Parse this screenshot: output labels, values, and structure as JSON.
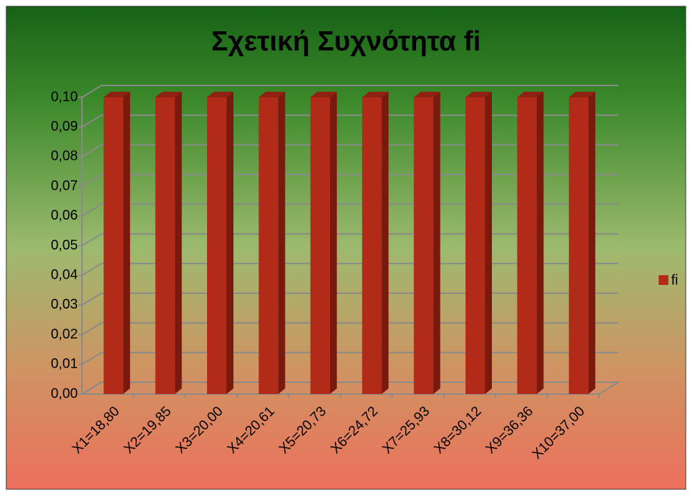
{
  "chart_data": {
    "type": "bar",
    "title": "Σχετική Συχνότητα fi",
    "categories": [
      "X1=18,80",
      "X2=19,85",
      "X3=20,00",
      "X4=20,61",
      "X5=20,73",
      "X6=24,72",
      "X7=25,93",
      "X8=30,12",
      "X9=36,36",
      "X10=37,00"
    ],
    "series": [
      {
        "name": "fi",
        "color": "#b22a18",
        "values": [
          0.1,
          0.1,
          0.1,
          0.1,
          0.1,
          0.1,
          0.1,
          0.1,
          0.1,
          0.1
        ]
      }
    ],
    "ylim": [
      0,
      0.1
    ],
    "yticks": [
      {
        "value": 0,
        "label": "0,00"
      },
      {
        "value": 0.01,
        "label": "0,01"
      },
      {
        "value": 0.02,
        "label": "0,02"
      },
      {
        "value": 0.03,
        "label": "0,03"
      },
      {
        "value": 0.04,
        "label": "0,04"
      },
      {
        "value": 0.05,
        "label": "0,05"
      },
      {
        "value": 0.06,
        "label": "0,06"
      },
      {
        "value": 0.07,
        "label": "0,07"
      },
      {
        "value": 0.08,
        "label": "0,08"
      },
      {
        "value": 0.09,
        "label": "0,09"
      },
      {
        "value": 0.1,
        "label": "0,10"
      }
    ],
    "grid": true,
    "legend": "right"
  }
}
